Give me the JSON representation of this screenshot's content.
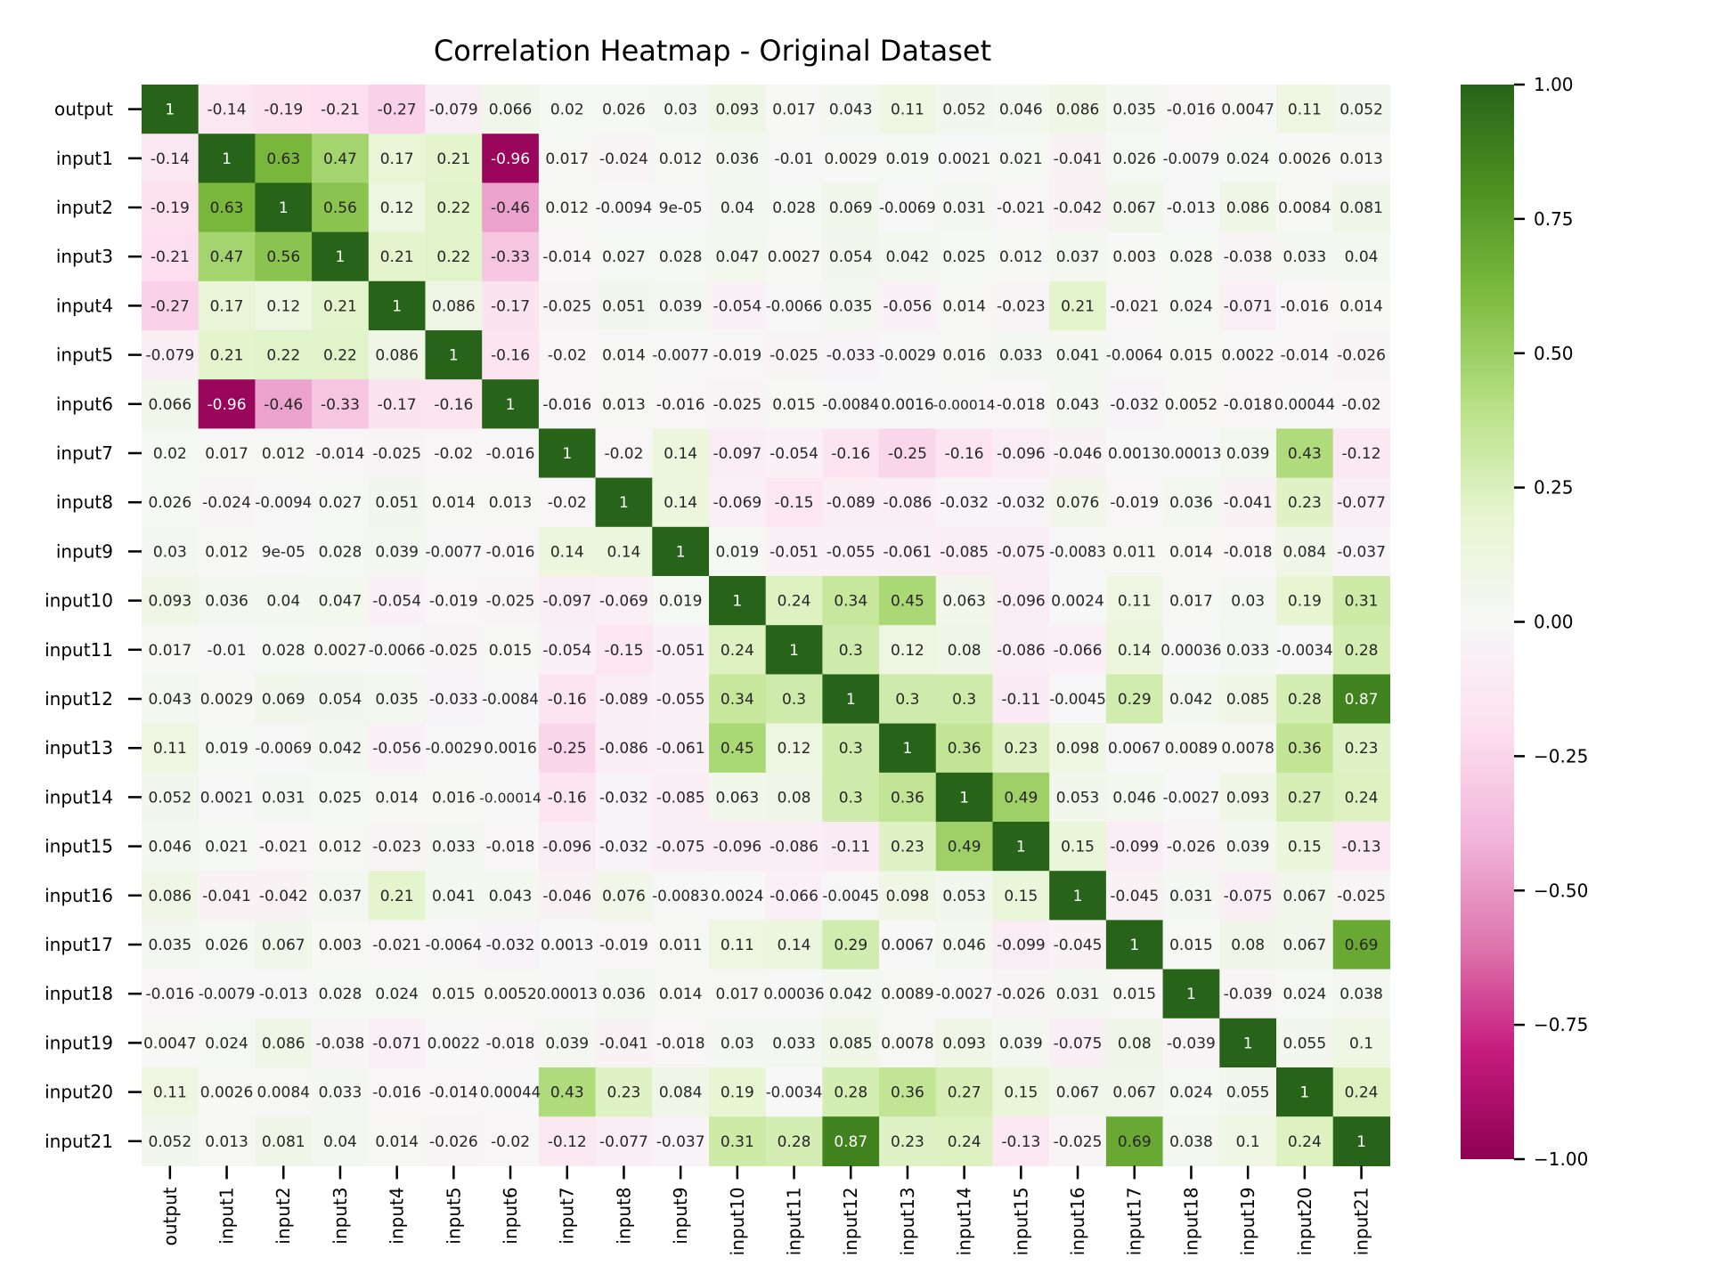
{
  "chart_data": {
    "type": "heatmap",
    "title": "Correlation Heatmap - Original Dataset",
    "labels": [
      "output",
      "input1",
      "input2",
      "input3",
      "input4",
      "input5",
      "input6",
      "input7",
      "input8",
      "input9",
      "input10",
      "input11",
      "input12",
      "input13",
      "input14",
      "input15",
      "input16",
      "input17",
      "input18",
      "input19",
      "input20",
      "input21"
    ],
    "annotations": [
      [
        "1",
        "-0.14",
        "-0.19",
        "-0.21",
        "-0.27",
        "-0.079",
        "0.066",
        "0.02",
        "0.026",
        "0.03",
        "0.093",
        "0.017",
        "0.043",
        "0.11",
        "0.052",
        "0.046",
        "0.086",
        "0.035",
        "-0.016",
        "0.0047",
        "0.11",
        "0.052"
      ],
      [
        "-0.14",
        "1",
        "0.63",
        "0.47",
        "0.17",
        "0.21",
        "-0.96",
        "0.017",
        "-0.024",
        "0.012",
        "0.036",
        "-0.01",
        "0.0029",
        "0.019",
        "0.0021",
        "0.021",
        "-0.041",
        "0.026",
        "-0.0079",
        "0.024",
        "0.0026",
        "0.013"
      ],
      [
        "-0.19",
        "0.63",
        "1",
        "0.56",
        "0.12",
        "0.22",
        "-0.46",
        "0.012",
        "-0.0094",
        "9e-05",
        "0.04",
        "0.028",
        "0.069",
        "-0.0069",
        "0.031",
        "-0.021",
        "-0.042",
        "0.067",
        "-0.013",
        "0.086",
        "0.0084",
        "0.081"
      ],
      [
        "-0.21",
        "0.47",
        "0.56",
        "1",
        "0.21",
        "0.22",
        "-0.33",
        "-0.014",
        "0.027",
        "0.028",
        "0.047",
        "0.0027",
        "0.054",
        "0.042",
        "0.025",
        "0.012",
        "0.037",
        "0.003",
        "0.028",
        "-0.038",
        "0.033",
        "0.04"
      ],
      [
        "-0.27",
        "0.17",
        "0.12",
        "0.21",
        "1",
        "0.086",
        "-0.17",
        "-0.025",
        "0.051",
        "0.039",
        "-0.054",
        "-0.0066",
        "0.035",
        "-0.056",
        "0.014",
        "-0.023",
        "0.21",
        "-0.021",
        "0.024",
        "-0.071",
        "-0.016",
        "0.014"
      ],
      [
        "-0.079",
        "0.21",
        "0.22",
        "0.22",
        "0.086",
        "1",
        "-0.16",
        "-0.02",
        "0.014",
        "-0.0077",
        "-0.019",
        "-0.025",
        "-0.033",
        "-0.0029",
        "0.016",
        "0.033",
        "0.041",
        "-0.0064",
        "0.015",
        "0.0022",
        "-0.014",
        "-0.026"
      ],
      [
        "0.066",
        "-0.96",
        "-0.46",
        "-0.33",
        "-0.17",
        "-0.16",
        "1",
        "-0.016",
        "0.013",
        "-0.016",
        "-0.025",
        "0.015",
        "-0.0084",
        "0.0016",
        "-0.00014",
        "-0.018",
        "0.043",
        "-0.032",
        "0.0052",
        "-0.018",
        "0.00044",
        "-0.02"
      ],
      [
        "0.02",
        "0.017",
        "0.012",
        "-0.014",
        "-0.025",
        "-0.02",
        "-0.016",
        "1",
        "-0.02",
        "0.14",
        "-0.097",
        "-0.054",
        "-0.16",
        "-0.25",
        "-0.16",
        "-0.096",
        "-0.046",
        "0.0013",
        "0.00013",
        "0.039",
        "0.43",
        "-0.12"
      ],
      [
        "0.026",
        "-0.024",
        "-0.0094",
        "0.027",
        "0.051",
        "0.014",
        "0.013",
        "-0.02",
        "1",
        "0.14",
        "-0.069",
        "-0.15",
        "-0.089",
        "-0.086",
        "-0.032",
        "-0.032",
        "0.076",
        "-0.019",
        "0.036",
        "-0.041",
        "0.23",
        "-0.077"
      ],
      [
        "0.03",
        "0.012",
        "9e-05",
        "0.028",
        "0.039",
        "-0.0077",
        "-0.016",
        "0.14",
        "0.14",
        "1",
        "0.019",
        "-0.051",
        "-0.055",
        "-0.061",
        "-0.085",
        "-0.075",
        "-0.0083",
        "0.011",
        "0.014",
        "-0.018",
        "0.084",
        "-0.037"
      ],
      [
        "0.093",
        "0.036",
        "0.04",
        "0.047",
        "-0.054",
        "-0.019",
        "-0.025",
        "-0.097",
        "-0.069",
        "0.019",
        "1",
        "0.24",
        "0.34",
        "0.45",
        "0.063",
        "-0.096",
        "0.0024",
        "0.11",
        "0.017",
        "0.03",
        "0.19",
        "0.31"
      ],
      [
        "0.017",
        "-0.01",
        "0.028",
        "0.0027",
        "-0.0066",
        "-0.025",
        "0.015",
        "-0.054",
        "-0.15",
        "-0.051",
        "0.24",
        "1",
        "0.3",
        "0.12",
        "0.08",
        "-0.086",
        "-0.066",
        "0.14",
        "0.00036",
        "0.033",
        "-0.0034",
        "0.28"
      ],
      [
        "0.043",
        "0.0029",
        "0.069",
        "0.054",
        "0.035",
        "-0.033",
        "-0.0084",
        "-0.16",
        "-0.089",
        "-0.055",
        "0.34",
        "0.3",
        "1",
        "0.3",
        "0.3",
        "-0.11",
        "-0.0045",
        "0.29",
        "0.042",
        "0.085",
        "0.28",
        "0.87"
      ],
      [
        "0.11",
        "0.019",
        "-0.0069",
        "0.042",
        "-0.056",
        "-0.0029",
        "0.0016",
        "-0.25",
        "-0.086",
        "-0.061",
        "0.45",
        "0.12",
        "0.3",
        "1",
        "0.36",
        "0.23",
        "0.098",
        "0.0067",
        "0.0089",
        "0.0078",
        "0.36",
        "0.23"
      ],
      [
        "0.052",
        "0.0021",
        "0.031",
        "0.025",
        "0.014",
        "0.016",
        "-0.00014",
        "-0.16",
        "-0.032",
        "-0.085",
        "0.063",
        "0.08",
        "0.3",
        "0.36",
        "1",
        "0.49",
        "0.053",
        "0.046",
        "-0.0027",
        "0.093",
        "0.27",
        "0.24"
      ],
      [
        "0.046",
        "0.021",
        "-0.021",
        "0.012",
        "-0.023",
        "0.033",
        "-0.018",
        "-0.096",
        "-0.032",
        "-0.075",
        "-0.096",
        "-0.086",
        "-0.11",
        "0.23",
        "0.49",
        "1",
        "0.15",
        "-0.099",
        "-0.026",
        "0.039",
        "0.15",
        "-0.13"
      ],
      [
        "0.086",
        "-0.041",
        "-0.042",
        "0.037",
        "0.21",
        "0.041",
        "0.043",
        "-0.046",
        "0.076",
        "-0.0083",
        "0.0024",
        "-0.066",
        "-0.0045",
        "0.098",
        "0.053",
        "0.15",
        "1",
        "-0.045",
        "0.031",
        "-0.075",
        "0.067",
        "-0.025"
      ],
      [
        "0.035",
        "0.026",
        "0.067",
        "0.003",
        "-0.021",
        "-0.0064",
        "-0.032",
        "0.0013",
        "-0.019",
        "0.011",
        "0.11",
        "0.14",
        "0.29",
        "0.0067",
        "0.046",
        "-0.099",
        "-0.045",
        "1",
        "0.015",
        "0.08",
        "0.067",
        "0.69"
      ],
      [
        "-0.016",
        "-0.0079",
        "-0.013",
        "0.028",
        "0.024",
        "0.015",
        "0.0052",
        "0.00013",
        "0.036",
        "0.014",
        "0.017",
        "0.00036",
        "0.042",
        "0.0089",
        "-0.0027",
        "-0.026",
        "0.031",
        "0.015",
        "1",
        "-0.039",
        "0.024",
        "0.038"
      ],
      [
        "0.0047",
        "0.024",
        "0.086",
        "-0.038",
        "-0.071",
        "0.0022",
        "-0.018",
        "0.039",
        "-0.041",
        "-0.018",
        "0.03",
        "0.033",
        "0.085",
        "0.0078",
        "0.093",
        "0.039",
        "-0.075",
        "0.08",
        "-0.039",
        "1",
        "0.055",
        "0.1"
      ],
      [
        "0.11",
        "0.0026",
        "0.0084",
        "0.033",
        "-0.016",
        "-0.014",
        "0.00044",
        "0.43",
        "0.23",
        "0.084",
        "0.19",
        "-0.0034",
        "0.28",
        "0.36",
        "0.27",
        "0.15",
        "0.067",
        "0.067",
        "0.024",
        "0.055",
        "1",
        "0.24"
      ],
      [
        "0.052",
        "0.013",
        "0.081",
        "0.04",
        "0.014",
        "-0.026",
        "-0.02",
        "-0.12",
        "-0.077",
        "-0.037",
        "0.31",
        "0.28",
        "0.87",
        "0.23",
        "0.24",
        "-0.13",
        "-0.025",
        "0.69",
        "0.038",
        "0.1",
        "0.24",
        "1"
      ]
    ],
    "colorbar": {
      "vmin": -1.0,
      "vmax": 1.0,
      "ticks": [
        1.0,
        0.75,
        0.5,
        0.25,
        0.0,
        -0.25,
        -0.5,
        -0.75,
        -1.0
      ],
      "tick_labels": [
        "1.00",
        "0.75",
        "0.50",
        "0.25",
        "0.00",
        "−0.25",
        "−0.50",
        "−0.75",
        "−1.00"
      ]
    },
    "colormap": [
      "#8e0152",
      "#c51b7d",
      "#de77ae",
      "#f1b6da",
      "#fde0ef",
      "#f7f7f7",
      "#e6f5d0",
      "#b8e186",
      "#7fbc41",
      "#4d9221",
      "#276419"
    ],
    "grid": false
  }
}
